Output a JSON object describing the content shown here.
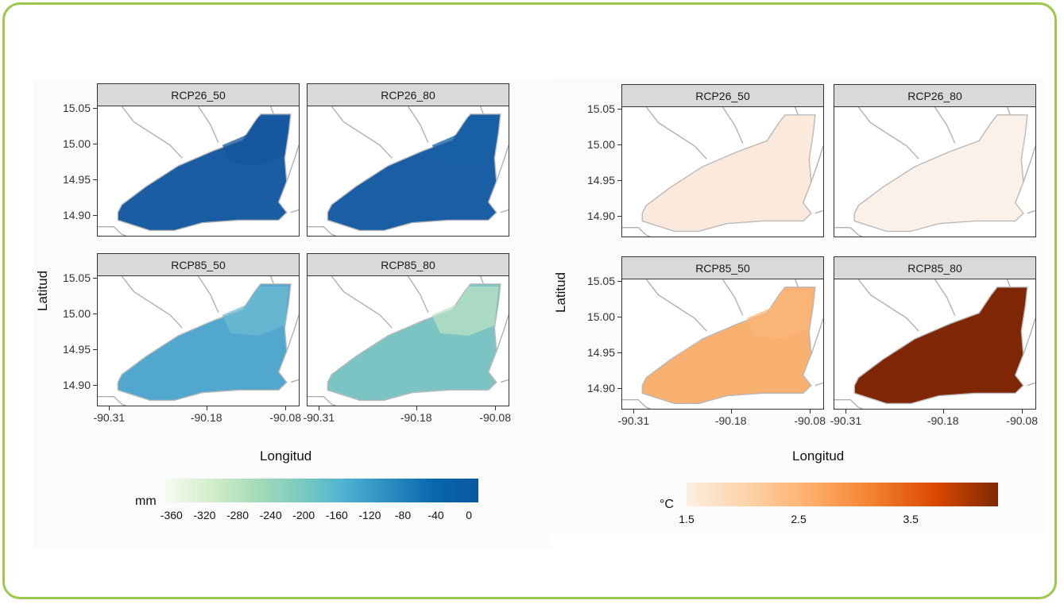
{
  "figures": [
    {
      "id": "precipitation",
      "y_axis_title": "Latitud",
      "x_axis_title": "Longitud",
      "y_ticks": [
        "15.05",
        "15.00",
        "14.95",
        "14.90"
      ],
      "x_ticks": [
        "-90.31",
        "-90.18",
        "-90.08"
      ],
      "legend": {
        "title": "mm",
        "labels": [
          "-360",
          "-320",
          "-280",
          "-240",
          "-200",
          "-160",
          "-120",
          "-80",
          "-40",
          "0"
        ],
        "colors": [
          "#f5fbef",
          "#d3eecc",
          "#a8dcb8",
          "#7dcbbf",
          "#4eb3d3",
          "#2b8cbe",
          "#0868ac",
          "#08589e"
        ]
      },
      "panels": [
        {
          "label": "RCP26_50",
          "fill": "#1a5da3",
          "variation": "#15579e"
        },
        {
          "label": "RCP26_80",
          "fill": "#1a5fa5",
          "variation": "#1760a6"
        },
        {
          "label": "RCP85_50",
          "fill": "#52a7cf",
          "variation": "#6dbbd2"
        },
        {
          "label": "RCP85_80",
          "fill": "#7cc4c4",
          "variation": "#b9e2c3"
        }
      ]
    },
    {
      "id": "temperature",
      "y_axis_title": "Latitud",
      "x_axis_title": "Longitud",
      "y_ticks": [
        "15.05",
        "15.00",
        "14.95",
        "14.90"
      ],
      "x_ticks": [
        "-90.31",
        "-90.18",
        "-90.08"
      ],
      "legend": {
        "title": "°C",
        "labels": [
          "1.5",
          "2.5",
          "3.5"
        ],
        "colors": [
          "#fcefe3",
          "#fdd2a8",
          "#fdae6b",
          "#f4802f",
          "#d94801",
          "#7f2704"
        ]
      },
      "panels": [
        {
          "label": "RCP26_50",
          "fill": "#fbe9dc",
          "variation": "#fbe9dc"
        },
        {
          "label": "RCP26_80",
          "fill": "#fcf1e8",
          "variation": "#fcf1e8"
        },
        {
          "label": "RCP85_50",
          "fill": "#f8b070",
          "variation": "#f9b678"
        },
        {
          "label": "RCP85_80",
          "fill": "#7f2704",
          "variation": "#7f2704"
        }
      ]
    }
  ]
}
